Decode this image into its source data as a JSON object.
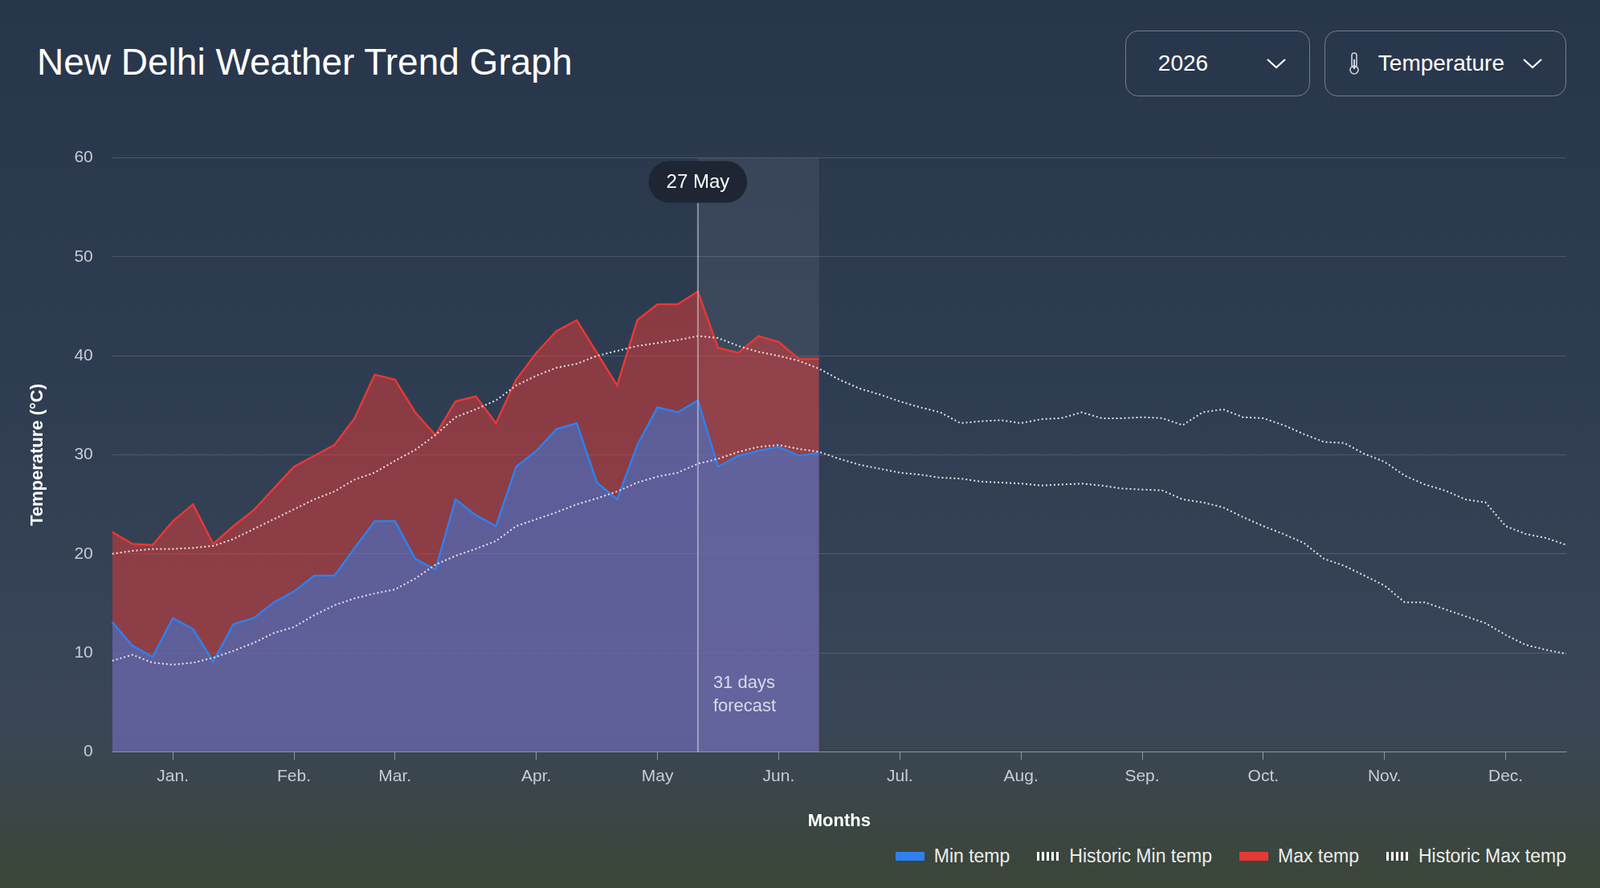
{
  "controls": [
    "2026",
    "Temperature"
  ],
  "chart_data": {
    "type": "line",
    "title": "New Delhi Weather Trend Graph",
    "x_label": "Months",
    "y_label": "Temperature (°C)",
    "categories": [
      null,
      null,
      null,
      "Jan.",
      null,
      null,
      null,
      null,
      null,
      "Feb.",
      null,
      null,
      null,
      null,
      "Mar.",
      null,
      null,
      null,
      null,
      null,
      null,
      "Apr.",
      null,
      null,
      null,
      null,
      null,
      "May",
      null,
      null,
      null,
      null,
      null,
      "Jun.",
      null,
      null,
      null,
      null,
      null,
      "Jul.",
      null,
      null,
      null,
      null,
      null,
      "Aug.",
      null,
      null,
      null,
      null,
      null,
      "Sep.",
      null,
      null,
      null,
      null,
      null,
      "Oct.",
      null,
      null,
      null,
      null,
      null,
      "Nov.",
      null,
      null,
      null,
      null,
      null,
      "Dec.",
      null,
      null,
      null
    ],
    "series": [
      {
        "name": "Min temp",
        "color": "#2f80ed",
        "type": "area",
        "line_style": "solid",
        "values": [
          13.1,
          10.7,
          9.6,
          13.5,
          12.4,
          9.1,
          12.9,
          13.5,
          15.1,
          16.2,
          17.8,
          17.8,
          20.6,
          23.3,
          23.3,
          19.5,
          18.4,
          25.5,
          23.9,
          22.8,
          28.8,
          30.4,
          32.6,
          33.2,
          27.2,
          25.5,
          31,
          34.8,
          34.3,
          35.5,
          28.8,
          29.9,
          30.4,
          30.8,
          29.9,
          30.2,
          null,
          null,
          null,
          null,
          null,
          null,
          null,
          null,
          null,
          null,
          null,
          null,
          null,
          null,
          null,
          null,
          null,
          null,
          null,
          null,
          null,
          null,
          null,
          null,
          null,
          null,
          null,
          null,
          null,
          null,
          null,
          null,
          null,
          null,
          null,
          null,
          null
        ]
      },
      {
        "name": "Historic Min temp",
        "color": "#ffffff",
        "type": "line",
        "line_style": "dotted",
        "values": [
          9.2,
          9.8,
          9.0,
          8.8,
          9.0,
          9.5,
          10.2,
          11,
          12,
          12.6,
          13.8,
          14.8,
          15.5,
          16,
          16.4,
          17.5,
          18.9,
          19.8,
          20.5,
          21.3,
          22.8,
          23.5,
          24.2,
          25,
          25.6,
          26.3,
          27.2,
          27.8,
          28.2,
          29.1,
          29.6,
          30.3,
          30.8,
          31,
          30.6,
          30.3,
          29.6,
          29,
          28.6,
          28.2,
          28,
          27.7,
          27.6,
          27.3,
          27.2,
          27.1,
          26.9,
          27,
          27.1,
          26.9,
          26.6,
          26.5,
          26.4,
          25.5,
          25.2,
          24.7,
          23.7,
          22.8,
          22,
          21.1,
          19.5,
          18.8,
          17.8,
          16.8,
          15.1,
          15.1,
          14.4,
          13.7,
          13,
          11.8,
          10.8,
          10.3,
          9.9
        ]
      },
      {
        "name": "Max temp",
        "color": "#e53935",
        "type": "area",
        "line_style": "solid",
        "values": [
          22.2,
          21,
          20.9,
          23.3,
          25,
          21,
          22.8,
          24.4,
          26.6,
          28.8,
          29.9,
          31,
          33.7,
          38.1,
          37.6,
          34.3,
          32,
          35.4,
          35.9,
          33.2,
          37.6,
          40.3,
          42.5,
          43.6,
          40.3,
          37,
          43.6,
          45.2,
          45.2,
          46.5,
          40.8,
          40.3,
          42,
          41.4,
          39.7,
          39.7,
          null,
          null,
          null,
          null,
          null,
          null,
          null,
          null,
          null,
          null,
          null,
          null,
          null,
          null,
          null,
          null,
          null,
          null,
          null,
          null,
          null,
          null,
          null,
          null,
          null,
          null,
          null,
          null,
          null,
          null,
          null,
          null,
          null,
          null,
          null,
          null,
          null
        ]
      },
      {
        "name": "Historic Max temp",
        "color": "#ffffff",
        "type": "line",
        "line_style": "dotted",
        "values": [
          20.0,
          20.3,
          20.5,
          20.5,
          20.6,
          20.8,
          21.5,
          22.5,
          23.5,
          24.5,
          25.5,
          26.3,
          27.5,
          28.2,
          29.4,
          30.5,
          32,
          33.8,
          34.6,
          35.5,
          37,
          38,
          38.8,
          39.2,
          40,
          40.5,
          41,
          41.3,
          41.6,
          42,
          41.8,
          41,
          40.4,
          40,
          39.5,
          38.7,
          37.6,
          36.7,
          36.1,
          35.4,
          34.8,
          34.3,
          33.2,
          33.4,
          33.5,
          33.2,
          33.6,
          33.7,
          34.3,
          33.7,
          33.7,
          33.8,
          33.7,
          33,
          34.3,
          34.6,
          33.8,
          33.7,
          33,
          32.1,
          31.3,
          31.2,
          30.1,
          29.3,
          27.9,
          27,
          26.4,
          25.5,
          25.2,
          22.8,
          22,
          21.6,
          20.9
        ]
      }
    ],
    "ylim": [
      0,
      60
    ],
    "yticks": [
      0,
      10,
      20,
      30,
      40,
      50,
      60
    ],
    "grid": true,
    "legend": "bottom-right",
    "annotations": [
      {
        "text": "27 May",
        "at": 29
      },
      {
        "text": "31 days forecast",
        "from": 29,
        "to": 35
      }
    ]
  }
}
